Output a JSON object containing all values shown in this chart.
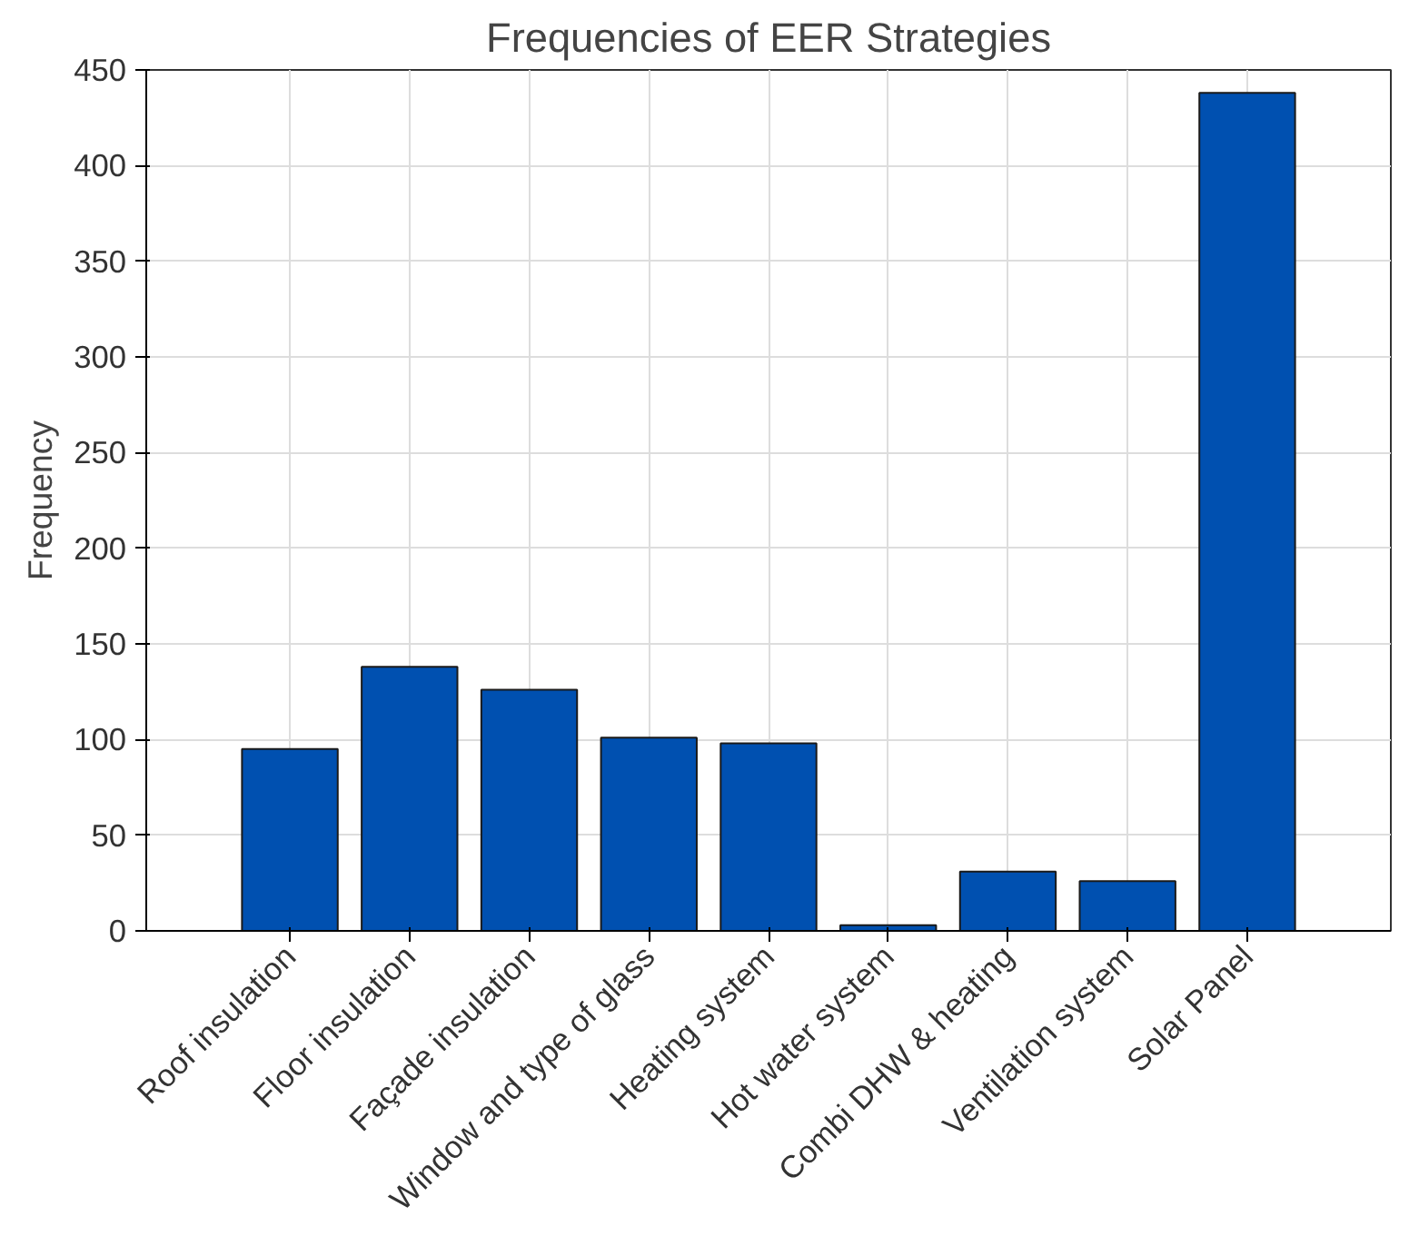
{
  "chart_data": {
    "type": "bar",
    "title": "Frequencies of EER Strategies",
    "ylabel": "Frequency",
    "categories": [
      "Roof insulation",
      "Floor insulation",
      "Façade insulation",
      "Window and type of glass",
      "Heating system",
      "Hot water system",
      "Combi DHW & heating",
      "Ventilation system",
      "Solar Panel"
    ],
    "values": [
      95,
      138,
      126,
      101,
      98,
      3,
      31,
      26,
      438
    ],
    "color": "#0050b0",
    "ylim": [
      0,
      450
    ],
    "yticks": [
      0,
      50,
      100,
      150,
      200,
      250,
      300,
      350,
      400,
      450
    ],
    "grid": true
  }
}
